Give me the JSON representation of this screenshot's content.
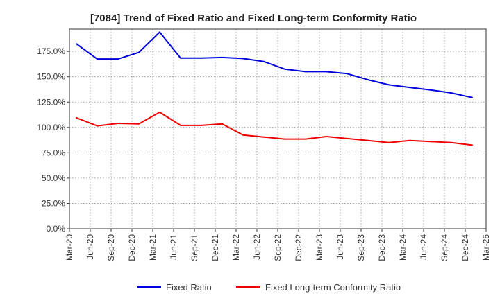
{
  "chart_data": {
    "type": "line",
    "title": "[7084]  Trend of Fixed Ratio and Fixed Long-term Conformity Ratio",
    "xlabel": "",
    "ylabel": "",
    "ylim": [
      0,
      197
    ],
    "grid": true,
    "legend_placement": "bottom",
    "x_ticks": [
      "Mar-20",
      "Jun-20",
      "Sep-20",
      "Dec-20",
      "Mar-21",
      "Jun-21",
      "Sep-21",
      "Dec-21",
      "Mar-22",
      "Jun-22",
      "Sep-22",
      "Dec-22",
      "Mar-23",
      "Jun-23",
      "Sep-23",
      "Dec-23",
      "Mar-24",
      "Jun-24",
      "Sep-24",
      "Dec-24",
      "Mar-25"
    ],
    "y_ticks": [
      0,
      25,
      50,
      75,
      100,
      125,
      150,
      175
    ],
    "y_tick_labels": [
      "0.0%",
      "25.0%",
      "50.0%",
      "75.0%",
      "100.0%",
      "125.0%",
      "150.0%",
      "175.0%"
    ],
    "categories": [
      "Mar-20",
      "Jun-20",
      "Sep-20",
      "Dec-20",
      "Mar-21",
      "Jun-21",
      "Sep-21",
      "Dec-21",
      "Mar-22",
      "Jun-22",
      "Sep-22",
      "Dec-22",
      "Mar-23",
      "Jun-23",
      "Sep-23",
      "Dec-23",
      "Mar-24",
      "Jun-24",
      "Sep-24",
      "Dec-24"
    ],
    "series": [
      {
        "name": "Fixed Ratio",
        "color": "#0000dd",
        "values": [
          182.5,
          167.5,
          167.5,
          174.0,
          194.0,
          168.5,
          168.5,
          169.0,
          168.0,
          165.0,
          157.5,
          155.0,
          155.0,
          153.0,
          147.0,
          142.0,
          139.5,
          137.0,
          134.0,
          129.5
        ]
      },
      {
        "name": "Fixed Long-term Conformity Ratio",
        "color": "#ee0000",
        "values": [
          109.5,
          101.5,
          104.0,
          103.5,
          115.0,
          102.0,
          102.0,
          103.5,
          92.5,
          90.5,
          88.5,
          88.5,
          91.0,
          89.0,
          87.0,
          85.0,
          87.0,
          86.0,
          85.0,
          82.5
        ]
      }
    ]
  }
}
